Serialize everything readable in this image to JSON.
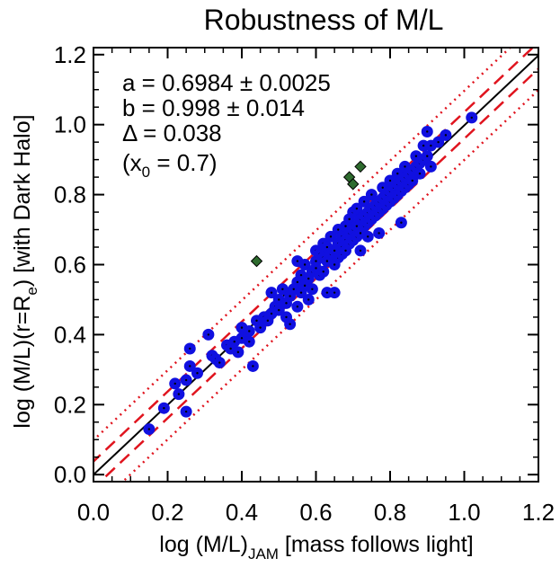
{
  "chart_data": {
    "type": "scatter",
    "title": "Robustness of M/L",
    "xlabel": {
      "main": "log (M/L)",
      "sub": "JAM",
      "rest": " [mass follows light]"
    },
    "ylabel": {
      "main": "log (M/L)(r=R",
      "sub": "e",
      "rest": ") [with Dark Halo]"
    },
    "xlim": [
      0.0,
      1.2
    ],
    "ylim": [
      -0.02,
      1.22
    ],
    "x_ticks": [
      "0.0",
      "0.2",
      "0.4",
      "0.6",
      "0.8",
      "1.0",
      "1.2"
    ],
    "y_ticks": [
      "0.0",
      "0.2",
      "0.4",
      "0.6",
      "0.8",
      "1.0",
      "1.2"
    ],
    "annotations": {
      "a": "a = 0.6984 ± 0.0025",
      "b": "b = 0.998 ± 0.014",
      "delta": "Δ = 0.038",
      "x0_open": "(x",
      "x0_sub": "0",
      "x0_rest": " = 0.7)"
    },
    "fit": {
      "a": 0.6984,
      "b": 0.998,
      "x0": 0.7,
      "delta": 0.038
    },
    "colors": {
      "points": "#1010e0",
      "outliers": "#2e6b2e",
      "fit_line": "#000000",
      "bands": "#e0141e"
    },
    "series": [
      {
        "marker": "blue-circle",
        "points": [
          [
            0.15,
            0.13
          ],
          [
            0.19,
            0.19
          ],
          [
            0.22,
            0.26
          ],
          [
            0.23,
            0.23
          ],
          [
            0.25,
            0.27
          ],
          [
            0.25,
            0.18
          ],
          [
            0.26,
            0.31
          ],
          [
            0.26,
            0.36
          ],
          [
            0.28,
            0.29
          ],
          [
            0.31,
            0.4
          ],
          [
            0.32,
            0.34
          ],
          [
            0.33,
            0.33
          ],
          [
            0.34,
            0.32
          ],
          [
            0.36,
            0.37
          ],
          [
            0.37,
            0.36
          ],
          [
            0.38,
            0.38
          ],
          [
            0.39,
            0.35
          ],
          [
            0.4,
            0.42
          ],
          [
            0.4,
            0.39
          ],
          [
            0.42,
            0.41
          ],
          [
            0.42,
            0.38
          ],
          [
            0.43,
            0.31
          ],
          [
            0.44,
            0.44
          ],
          [
            0.45,
            0.42
          ],
          [
            0.46,
            0.45
          ],
          [
            0.47,
            0.44
          ],
          [
            0.48,
            0.52
          ],
          [
            0.48,
            0.46
          ],
          [
            0.49,
            0.48
          ],
          [
            0.5,
            0.5
          ],
          [
            0.5,
            0.47
          ],
          [
            0.51,
            0.53
          ],
          [
            0.52,
            0.49
          ],
          [
            0.52,
            0.45
          ],
          [
            0.53,
            0.51
          ],
          [
            0.53,
            0.43
          ],
          [
            0.54,
            0.53
          ],
          [
            0.55,
            0.48
          ],
          [
            0.55,
            0.61
          ],
          [
            0.55,
            0.55
          ],
          [
            0.56,
            0.52
          ],
          [
            0.56,
            0.57
          ],
          [
            0.57,
            0.54
          ],
          [
            0.57,
            0.6
          ],
          [
            0.58,
            0.56
          ],
          [
            0.58,
            0.5
          ],
          [
            0.59,
            0.58
          ],
          [
            0.59,
            0.53
          ],
          [
            0.6,
            0.61
          ],
          [
            0.6,
            0.59
          ],
          [
            0.6,
            0.64
          ],
          [
            0.61,
            0.57
          ],
          [
            0.61,
            0.63
          ],
          [
            0.62,
            0.62
          ],
          [
            0.62,
            0.58
          ],
          [
            0.62,
            0.66
          ],
          [
            0.63,
            0.61
          ],
          [
            0.63,
            0.65
          ],
          [
            0.63,
            0.52
          ],
          [
            0.64,
            0.63
          ],
          [
            0.64,
            0.68
          ],
          [
            0.65,
            0.64
          ],
          [
            0.65,
            0.6
          ],
          [
            0.65,
            0.52
          ],
          [
            0.66,
            0.66
          ],
          [
            0.66,
            0.7
          ],
          [
            0.66,
            0.62
          ],
          [
            0.67,
            0.65
          ],
          [
            0.67,
            0.68
          ],
          [
            0.67,
            0.63
          ],
          [
            0.68,
            0.67
          ],
          [
            0.68,
            0.71
          ],
          [
            0.68,
            0.64
          ],
          [
            0.69,
            0.69
          ],
          [
            0.69,
            0.66
          ],
          [
            0.69,
            0.73
          ],
          [
            0.7,
            0.7
          ],
          [
            0.7,
            0.67
          ],
          [
            0.7,
            0.75
          ],
          [
            0.71,
            0.71
          ],
          [
            0.71,
            0.68
          ],
          [
            0.71,
            0.76
          ],
          [
            0.72,
            0.73
          ],
          [
            0.72,
            0.69
          ],
          [
            0.72,
            0.64
          ],
          [
            0.73,
            0.74
          ],
          [
            0.73,
            0.71
          ],
          [
            0.73,
            0.78
          ],
          [
            0.74,
            0.75
          ],
          [
            0.74,
            0.72
          ],
          [
            0.74,
            0.68
          ],
          [
            0.75,
            0.76
          ],
          [
            0.75,
            0.73
          ],
          [
            0.75,
            0.8
          ],
          [
            0.76,
            0.77
          ],
          [
            0.76,
            0.74
          ],
          [
            0.77,
            0.78
          ],
          [
            0.77,
            0.75
          ],
          [
            0.77,
            0.69
          ],
          [
            0.78,
            0.79
          ],
          [
            0.78,
            0.82
          ],
          [
            0.78,
            0.76
          ],
          [
            0.79,
            0.8
          ],
          [
            0.79,
            0.77
          ],
          [
            0.8,
            0.81
          ],
          [
            0.8,
            0.78
          ],
          [
            0.8,
            0.84
          ],
          [
            0.81,
            0.82
          ],
          [
            0.81,
            0.79
          ],
          [
            0.82,
            0.83
          ],
          [
            0.82,
            0.86
          ],
          [
            0.82,
            0.8
          ],
          [
            0.83,
            0.84
          ],
          [
            0.83,
            0.81
          ],
          [
            0.83,
            0.72
          ],
          [
            0.84,
            0.85
          ],
          [
            0.84,
            0.82
          ],
          [
            0.84,
            0.88
          ],
          [
            0.85,
            0.86
          ],
          [
            0.85,
            0.83
          ],
          [
            0.86,
            0.87
          ],
          [
            0.86,
            0.84
          ],
          [
            0.87,
            0.88
          ],
          [
            0.87,
            0.91
          ],
          [
            0.88,
            0.89
          ],
          [
            0.88,
            0.86
          ],
          [
            0.89,
            0.9
          ],
          [
            0.89,
            0.94
          ],
          [
            0.9,
            0.91
          ],
          [
            0.9,
            0.98
          ],
          [
            0.91,
            0.88
          ],
          [
            0.91,
            0.94
          ],
          [
            0.93,
            0.95
          ],
          [
            0.95,
            0.97
          ],
          [
            1.02,
            1.02
          ]
        ]
      },
      {
        "marker": "green-diamond",
        "points": [
          [
            0.44,
            0.61
          ],
          [
            0.69,
            0.85
          ],
          [
            0.7,
            0.83
          ],
          [
            0.72,
            0.88
          ]
        ]
      }
    ]
  }
}
